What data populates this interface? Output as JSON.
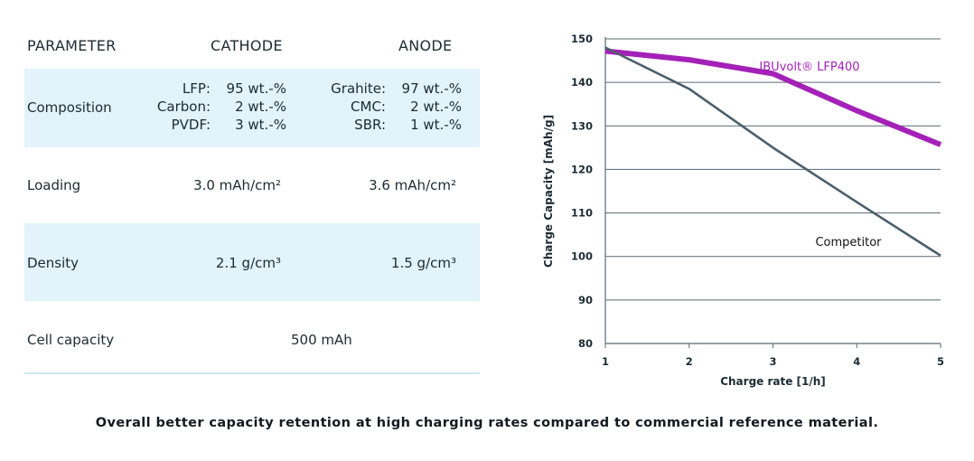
{
  "table": {
    "headers": {
      "parameter": "PARAMETER",
      "cathode": "CATHODE",
      "anode": "ANODE"
    },
    "composition": {
      "label": "Composition",
      "cathode": [
        {
          "name": "LFP:",
          "value": "95 wt.-%"
        },
        {
          "name": "Carbon:",
          "value": "2 wt.-%"
        },
        {
          "name": "PVDF:",
          "value": "3 wt.-%"
        }
      ],
      "anode": [
        {
          "name": "Grahite:",
          "value": "97 wt.-%"
        },
        {
          "name": "CMC:",
          "value": "2 wt.-%"
        },
        {
          "name": "SBR:",
          "value": "1 wt.-%"
        }
      ]
    },
    "loading": {
      "label": "Loading",
      "cathode": "3.0 mAh/cm²",
      "anode": "3.6 mAh/cm²"
    },
    "density": {
      "label": "Density",
      "cathode": "2.1 g/cm³",
      "anode": "1.5 g/cm³"
    },
    "cell_capacity": {
      "label": "Cell capacity",
      "value": "500 mAh"
    }
  },
  "chart_data": {
    "type": "line",
    "xlabel": "Charge rate [1/h]",
    "ylabel": "Charge Capacity [mAh/g]",
    "xlim": [
      1,
      5
    ],
    "ylim": [
      80,
      150
    ],
    "xticks": [
      1,
      2,
      3,
      4,
      5
    ],
    "yticks": [
      80,
      90,
      100,
      110,
      120,
      130,
      140,
      150
    ],
    "grid": "horizontal",
    "series": [
      {
        "name": "IBUvolt® LFP400",
        "color": "#a421b8",
        "x": [
          1,
          2,
          3,
          4,
          5
        ],
        "y": [
          147.2,
          145.2,
          142.0,
          133.5,
          125.7
        ]
      },
      {
        "name": "Competitor",
        "color": "#4c5f6b",
        "x": [
          1,
          2,
          3,
          4,
          5
        ],
        "y": [
          148.0,
          138.5,
          125.0,
          112.5,
          100.2
        ]
      }
    ]
  },
  "caption": "Overall better capacity retention at high charging rates compared to commercial reference material."
}
